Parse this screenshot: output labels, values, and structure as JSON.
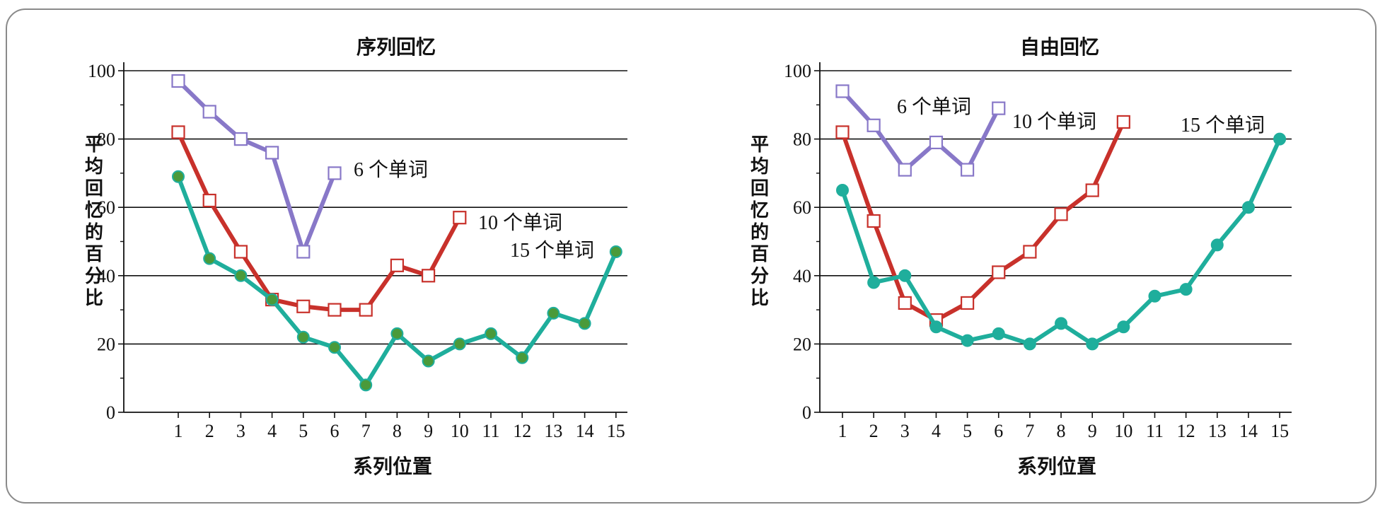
{
  "chart_data": [
    {
      "type": "line",
      "title": "序列回忆",
      "xlabel": "系列位置",
      "ylabel": "平均回忆的百分比",
      "ylim": [
        0,
        100
      ],
      "yticks": [
        "0",
        "20",
        "40",
        "60",
        "80",
        "100"
      ],
      "xticks": [
        "1",
        "2",
        "3",
        "4",
        "5",
        "6",
        "7",
        "8",
        "9",
        "10",
        "11",
        "12",
        "13",
        "14",
        "15"
      ],
      "grid": "horizontal",
      "series": [
        {
          "name": "6 个单词",
          "color": "#8878c8",
          "marker": "square",
          "x": [
            1,
            2,
            3,
            4,
            5,
            6
          ],
          "values": [
            97,
            88,
            80,
            76,
            47,
            70
          ]
        },
        {
          "name": "10 个单词",
          "color": "#c8312b",
          "marker": "square",
          "x": [
            1,
            2,
            3,
            4,
            5,
            6,
            7,
            8,
            9,
            10
          ],
          "values": [
            82,
            62,
            47,
            33,
            31,
            30,
            30,
            43,
            40,
            57
          ]
        },
        {
          "name": "15 个单词",
          "color": "#1fae9c",
          "marker": "circle",
          "marker_fill": "#4a9a3a",
          "x": [
            1,
            2,
            3,
            4,
            5,
            6,
            7,
            8,
            9,
            10,
            11,
            12,
            13,
            14,
            15
          ],
          "values": [
            69,
            45,
            40,
            33,
            22,
            19,
            8,
            23,
            15,
            20,
            23,
            16,
            29,
            26,
            47
          ]
        }
      ]
    },
    {
      "type": "line",
      "title": "自由回忆",
      "xlabel": "系列位置",
      "ylabel": "平均回忆的百分比",
      "ylim": [
        0,
        100
      ],
      "yticks": [
        "0",
        "20",
        "40",
        "60",
        "80",
        "100"
      ],
      "xticks": [
        "1",
        "2",
        "3",
        "4",
        "5",
        "6",
        "7",
        "8",
        "9",
        "10",
        "11",
        "12",
        "13",
        "14",
        "15"
      ],
      "grid": "horizontal",
      "series": [
        {
          "name": "6 个单词",
          "color": "#8878c8",
          "marker": "square",
          "x": [
            1,
            2,
            3,
            4,
            5,
            6
          ],
          "values": [
            94,
            84,
            71,
            79,
            71,
            89
          ]
        },
        {
          "name": "10 个单词",
          "color": "#c8312b",
          "marker": "square",
          "x": [
            1,
            2,
            3,
            4,
            5,
            6,
            7,
            8,
            9,
            10
          ],
          "values": [
            82,
            56,
            32,
            27,
            32,
            41,
            47,
            58,
            65,
            85
          ]
        },
        {
          "name": "15 个单词",
          "color": "#1fae9c",
          "marker": "circle",
          "marker_fill": "#1fae9c",
          "x": [
            1,
            2,
            3,
            4,
            5,
            6,
            7,
            8,
            9,
            10,
            11,
            12,
            13,
            14,
            15
          ],
          "values": [
            65,
            38,
            40,
            25,
            21,
            23,
            20,
            26,
            20,
            25,
            34,
            36,
            49,
            60,
            80
          ]
        }
      ]
    }
  ]
}
